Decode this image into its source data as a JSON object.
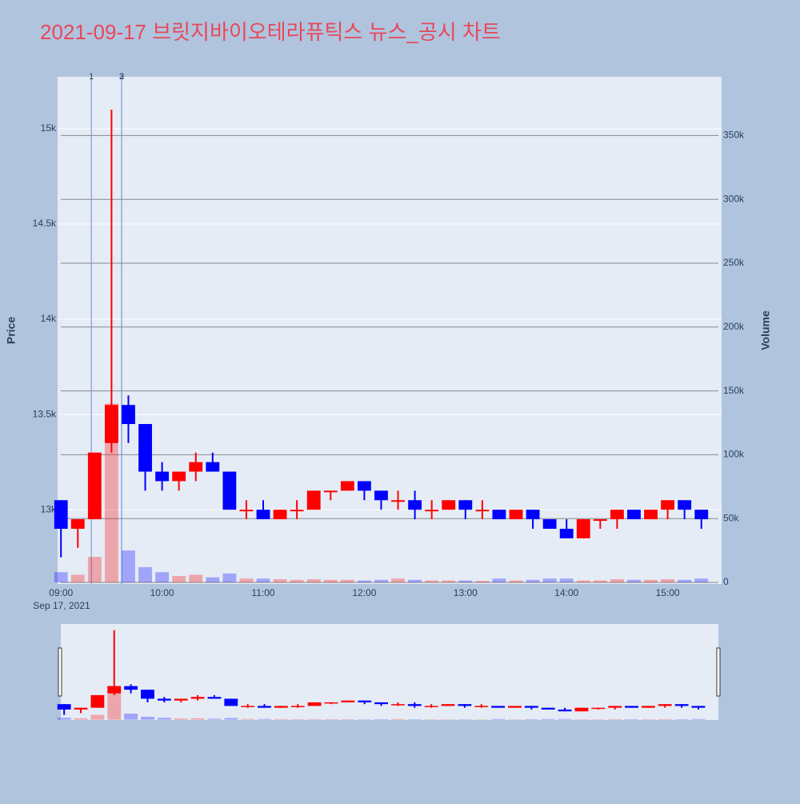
{
  "chart_data": {
    "type": "candlestick",
    "title": "2021-09-17 브릿지바이오테라퓨틱스 뉴스_공시 차트",
    "y_label": "Price",
    "y2_label": "Volume",
    "x_date_label": "Sep 17, 2021",
    "up_color": "#ff0000",
    "down_color": "#0000ff",
    "x": [
      "2021-09-17 09:00",
      "2021-09-17 09:10",
      "2021-09-17 09:20",
      "2021-09-17 09:30",
      "2021-09-17 09:40",
      "2021-09-17 09:50",
      "2021-09-17 10:00",
      "2021-09-17 10:10",
      "2021-09-17 10:20",
      "2021-09-17 10:30",
      "2021-09-17 10:40",
      "2021-09-17 10:50",
      "2021-09-17 11:00",
      "2021-09-17 11:10",
      "2021-09-17 11:20",
      "2021-09-17 11:30",
      "2021-09-17 11:40",
      "2021-09-17 11:50",
      "2021-09-17 12:00",
      "2021-09-17 12:10",
      "2021-09-17 12:20",
      "2021-09-17 12:30",
      "2021-09-17 12:40",
      "2021-09-17 12:50",
      "2021-09-17 13:00",
      "2021-09-17 13:10",
      "2021-09-17 13:20",
      "2021-09-17 13:30",
      "2021-09-17 13:40",
      "2021-09-17 13:50",
      "2021-09-17 14:00",
      "2021-09-17 14:10",
      "2021-09-17 14:20",
      "2021-09-17 14:30",
      "2021-09-17 14:40",
      "2021-09-17 14:50",
      "2021-09-17 15:00",
      "2021-09-17 15:10",
      "2021-09-17 15:20"
    ],
    "open": [
      13050,
      12900,
      12950,
      13350,
      13550,
      13450,
      13200,
      13150,
      13200,
      13250,
      13200,
      13000,
      13000,
      12950,
      13000,
      13000,
      13100,
      13100,
      13150,
      13100,
      13050,
      13050,
      13000,
      13000,
      13050,
      13000,
      13000,
      12950,
      13000,
      12950,
      12900,
      12850,
      12950,
      12950,
      13000,
      12950,
      13000,
      13050,
      13000
    ],
    "high": [
      13050,
      12950,
      13300,
      15100,
      13600,
      13450,
      13250,
      13200,
      13300,
      13300,
      13200,
      13050,
      13050,
      13000,
      13050,
      13100,
      13100,
      13150,
      13150,
      13100,
      13100,
      13100,
      13050,
      13050,
      13050,
      13050,
      13000,
      13000,
      13000,
      12950,
      12950,
      12950,
      12950,
      13000,
      13000,
      13000,
      13050,
      13050,
      13000
    ],
    "low": [
      12750,
      12800,
      12950,
      13300,
      13350,
      13100,
      13100,
      13100,
      13150,
      13200,
      13000,
      12950,
      12950,
      12950,
      12950,
      13000,
      13050,
      13100,
      13050,
      13000,
      13000,
      12950,
      12950,
      13000,
      12950,
      12950,
      12950,
      12950,
      12900,
      12900,
      12850,
      12850,
      12900,
      12900,
      12950,
      12950,
      12950,
      12950,
      12900
    ],
    "close": [
      12900,
      12950,
      13300,
      13550,
      13450,
      13200,
      13150,
      13200,
      13250,
      13200,
      13000,
      13000,
      12950,
      13000,
      13000,
      13100,
      13100,
      13150,
      13100,
      13050,
      13050,
      13000,
      13000,
      13050,
      13000,
      13000,
      12950,
      13000,
      12950,
      12900,
      12850,
      12950,
      12950,
      13000,
      12950,
      13000,
      13050,
      13000,
      12950
    ],
    "volume": [
      8000,
      6000,
      20000,
      140000,
      25000,
      12000,
      8000,
      5000,
      6000,
      4000,
      7000,
      3000,
      3000,
      2500,
      2000,
      2500,
      2000,
      2000,
      1500,
      2000,
      3000,
      2000,
      1500,
      1500,
      1500,
      1200,
      3000,
      1500,
      2000,
      3000,
      3000,
      1500,
      1500,
      2500,
      2000,
      2000,
      2500,
      2000,
      3000
    ],
    "xlim": [
      "2021-09-17 08:58",
      "2021-09-17 15:32"
    ],
    "xticks": [
      {
        "value": "2021-09-17 09:00",
        "label": "09:00"
      },
      {
        "value": "2021-09-17 10:00",
        "label": "10:00"
      },
      {
        "value": "2021-09-17 11:00",
        "label": "11:00"
      },
      {
        "value": "2021-09-17 12:00",
        "label": "12:00"
      },
      {
        "value": "2021-09-17 13:00",
        "label": "13:00"
      },
      {
        "value": "2021-09-17 14:00",
        "label": "14:00"
      },
      {
        "value": "2021-09-17 15:00",
        "label": "15:00"
      }
    ],
    "ylim": [
      12610,
      15273
    ],
    "yticks": [
      {
        "value": 13000,
        "label": "13k"
      },
      {
        "value": 13500,
        "label": "13.5k"
      },
      {
        "value": 14000,
        "label": "14k"
      },
      {
        "value": 14500,
        "label": "14.5k"
      },
      {
        "value": 15000,
        "label": "15k"
      }
    ],
    "y2lim": [
      -1250,
      396000
    ],
    "y2ticks": [
      0,
      {
        "value": 50000,
        "label": "50k"
      },
      {
        "value": 100000,
        "label": "100k"
      },
      {
        "value": 150000,
        "label": "150k"
      },
      {
        "value": 200000,
        "label": "200k"
      },
      {
        "value": 250000,
        "label": "250k"
      },
      {
        "value": 300000,
        "label": "300k"
      },
      {
        "value": 350000,
        "label": "350k"
      }
    ],
    "annotations": [
      {
        "x": "2021-09-17 09:18",
        "text": "1"
      },
      {
        "x": "2021-09-17 09:36",
        "text": "2"
      },
      {
        "x": "2021-09-17 09:36",
        "text": "3"
      }
    ]
  }
}
